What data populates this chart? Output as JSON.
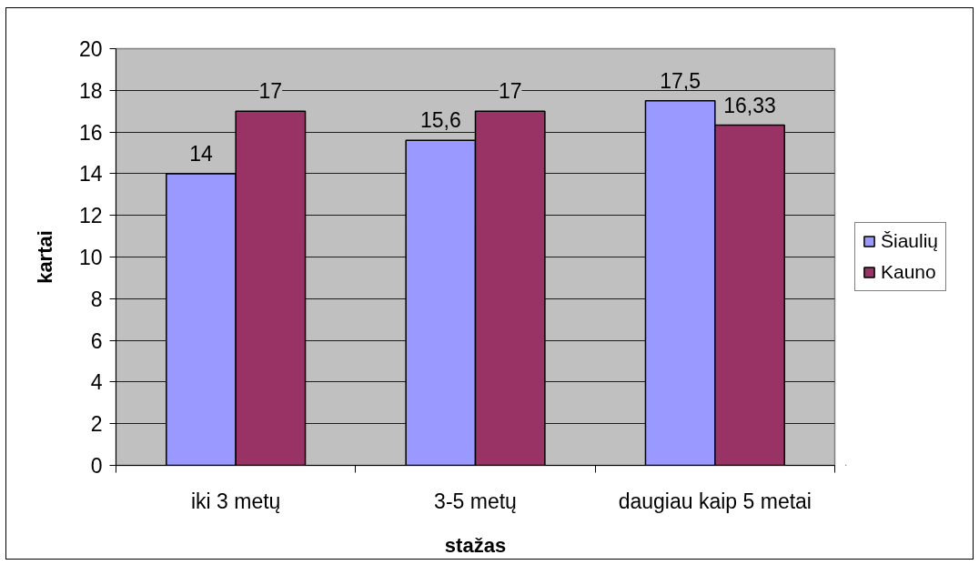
{
  "chart_data": {
    "type": "bar",
    "xlabel": "stažas",
    "ylabel": "kartai",
    "categories": [
      "iki 3 metų",
      "3-5 metų",
      "daugiau kaip 5 metai"
    ],
    "series": [
      {
        "name": "Šiaulių",
        "color": "#9999ff",
        "values": [
          14,
          15.6,
          17.5
        ],
        "value_labels": [
          "14",
          "15,6",
          "17,5"
        ]
      },
      {
        "name": "Kauno",
        "color": "#993366",
        "values": [
          17,
          17,
          16.33
        ],
        "value_labels": [
          "17",
          "17",
          "16,33"
        ]
      }
    ],
    "ylim": [
      0,
      20
    ],
    "yticks": [
      0,
      2,
      4,
      6,
      8,
      10,
      12,
      14,
      16,
      18,
      20
    ],
    "grid": "y",
    "legend": "right"
  }
}
